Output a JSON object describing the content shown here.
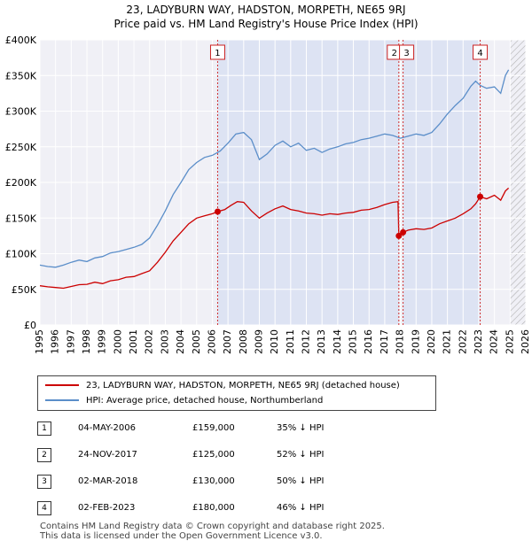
{
  "chart_data": {
    "type": "line",
    "title": "23, LADYBURN WAY, HADSTON, MORPETH, NE65 9RJ",
    "subtitle": "Price paid vs. HM Land Registry's House Price Index (HPI)",
    "xlabel": "",
    "ylabel": "",
    "xlim": [
      1995,
      2026
    ],
    "ylim": [
      0,
      400000
    ],
    "x_ticks": [
      "1995",
      "1996",
      "1997",
      "1998",
      "1999",
      "2000",
      "2001",
      "2002",
      "2003",
      "2004",
      "2005",
      "2006",
      "2007",
      "2008",
      "2009",
      "2010",
      "2011",
      "2012",
      "2013",
      "2014",
      "2015",
      "2016",
      "2017",
      "2018",
      "2019",
      "2020",
      "2021",
      "2022",
      "2023",
      "2024",
      "2025",
      "2026"
    ],
    "y_ticks": [
      {
        "value": 0,
        "label": "£0"
      },
      {
        "value": 50000,
        "label": "£50K"
      },
      {
        "value": 100000,
        "label": "£100K"
      },
      {
        "value": 150000,
        "label": "£150K"
      },
      {
        "value": 200000,
        "label": "£200K"
      },
      {
        "value": 250000,
        "label": "£250K"
      },
      {
        "value": 300000,
        "label": "£300K"
      },
      {
        "value": 350000,
        "label": "£350K"
      },
      {
        "value": 400000,
        "label": "£400K"
      }
    ],
    "grid": true,
    "shaded_ranges": [
      [
        2006.34,
        2017.9
      ],
      [
        2018.17,
        2023.09
      ]
    ],
    "future_hatch_from": 2025.0,
    "series": [
      {
        "name": "23, LADYBURN WAY, HADSTON, MORPETH, NE65 9RJ (detached house)",
        "color": "#cc0000",
        "points": [
          [
            1995.0,
            55000
          ],
          [
            1995.5,
            53500
          ],
          [
            1996.0,
            52500
          ],
          [
            1996.5,
            51500
          ],
          [
            1997.0,
            54000
          ],
          [
            1997.5,
            56500
          ],
          [
            1998.0,
            57000
          ],
          [
            1998.5,
            60000
          ],
          [
            1999.0,
            58000
          ],
          [
            1999.5,
            62000
          ],
          [
            2000.0,
            63500
          ],
          [
            2000.5,
            67000
          ],
          [
            2001.0,
            68000
          ],
          [
            2001.5,
            72000
          ],
          [
            2002.0,
            76000
          ],
          [
            2002.5,
            88000
          ],
          [
            2003.0,
            102000
          ],
          [
            2003.5,
            118000
          ],
          [
            2004.0,
            130000
          ],
          [
            2004.5,
            142000
          ],
          [
            2005.0,
            150000
          ],
          [
            2005.5,
            153000
          ],
          [
            2006.0,
            156000
          ],
          [
            2006.34,
            159000
          ],
          [
            2006.8,
            162000
          ],
          [
            2007.2,
            168000
          ],
          [
            2007.6,
            173000
          ],
          [
            2008.0,
            172000
          ],
          [
            2008.5,
            160000
          ],
          [
            2009.0,
            150000
          ],
          [
            2009.5,
            157000
          ],
          [
            2010.0,
            163000
          ],
          [
            2010.5,
            167000
          ],
          [
            2011.0,
            162000
          ],
          [
            2011.5,
            160000
          ],
          [
            2012.0,
            157000
          ],
          [
            2012.5,
            156000
          ],
          [
            2013.0,
            154000
          ],
          [
            2013.5,
            156000
          ],
          [
            2014.0,
            155000
          ],
          [
            2014.5,
            157000
          ],
          [
            2015.0,
            158000
          ],
          [
            2015.5,
            161000
          ],
          [
            2016.0,
            162000
          ],
          [
            2016.5,
            165000
          ],
          [
            2017.0,
            169000
          ],
          [
            2017.5,
            172000
          ],
          [
            2017.85,
            173000
          ],
          [
            2017.9,
            125000
          ],
          [
            2018.17,
            130000
          ],
          [
            2018.5,
            133000
          ],
          [
            2019.0,
            135000
          ],
          [
            2019.5,
            134000
          ],
          [
            2020.0,
            136000
          ],
          [
            2020.5,
            142000
          ],
          [
            2021.0,
            146000
          ],
          [
            2021.5,
            150000
          ],
          [
            2022.0,
            156000
          ],
          [
            2022.5,
            163000
          ],
          [
            2022.8,
            170000
          ],
          [
            2023.09,
            180000
          ],
          [
            2023.5,
            177000
          ],
          [
            2024.0,
            182000
          ],
          [
            2024.4,
            175000
          ],
          [
            2024.7,
            188000
          ],
          [
            2024.9,
            192000
          ]
        ]
      },
      {
        "name": "HPI: Average price, detached house, Northumberland",
        "color": "#5b8ec9",
        "points": [
          [
            1995.0,
            84000
          ],
          [
            1995.5,
            82000
          ],
          [
            1996.0,
            81000
          ],
          [
            1996.5,
            84000
          ],
          [
            1997.0,
            88000
          ],
          [
            1997.5,
            91000
          ],
          [
            1998.0,
            89000
          ],
          [
            1998.5,
            94000
          ],
          [
            1999.0,
            96000
          ],
          [
            1999.5,
            101000
          ],
          [
            2000.0,
            103000
          ],
          [
            2000.5,
            106000
          ],
          [
            2001.0,
            109000
          ],
          [
            2001.5,
            113000
          ],
          [
            2002.0,
            122000
          ],
          [
            2002.5,
            140000
          ],
          [
            2003.0,
            160000
          ],
          [
            2003.5,
            183000
          ],
          [
            2004.0,
            200000
          ],
          [
            2004.5,
            218000
          ],
          [
            2005.0,
            228000
          ],
          [
            2005.5,
            235000
          ],
          [
            2006.0,
            238000
          ],
          [
            2006.5,
            244000
          ],
          [
            2007.0,
            255000
          ],
          [
            2007.5,
            268000
          ],
          [
            2008.0,
            270000
          ],
          [
            2008.5,
            260000
          ],
          [
            2009.0,
            232000
          ],
          [
            2009.5,
            240000
          ],
          [
            2010.0,
            252000
          ],
          [
            2010.5,
            258000
          ],
          [
            2011.0,
            250000
          ],
          [
            2011.5,
            255000
          ],
          [
            2012.0,
            245000
          ],
          [
            2012.5,
            248000
          ],
          [
            2013.0,
            242000
          ],
          [
            2013.5,
            247000
          ],
          [
            2014.0,
            250000
          ],
          [
            2014.5,
            254000
          ],
          [
            2015.0,
            256000
          ],
          [
            2015.5,
            260000
          ],
          [
            2016.0,
            262000
          ],
          [
            2016.5,
            265000
          ],
          [
            2017.0,
            268000
          ],
          [
            2017.5,
            266000
          ],
          [
            2018.0,
            262000
          ],
          [
            2018.5,
            265000
          ],
          [
            2019.0,
            268000
          ],
          [
            2019.5,
            266000
          ],
          [
            2020.0,
            270000
          ],
          [
            2020.5,
            282000
          ],
          [
            2021.0,
            296000
          ],
          [
            2021.5,
            308000
          ],
          [
            2022.0,
            318000
          ],
          [
            2022.5,
            335000
          ],
          [
            2022.8,
            342000
          ],
          [
            2023.09,
            336000
          ],
          [
            2023.5,
            332000
          ],
          [
            2024.0,
            334000
          ],
          [
            2024.4,
            325000
          ],
          [
            2024.7,
            350000
          ],
          [
            2024.9,
            358000
          ]
        ]
      }
    ],
    "annotations": [
      {
        "label": "1",
        "x": 2006.34,
        "y": 159000
      },
      {
        "label": "2",
        "x": 2017.9,
        "y": 125000
      },
      {
        "label": "3",
        "x": 2018.17,
        "y": 130000
      },
      {
        "label": "4",
        "x": 2023.09,
        "y": 180000
      }
    ]
  },
  "legend": {
    "property_label": "23, LADYBURN WAY, HADSTON, MORPETH, NE65 9RJ (detached house)",
    "hpi_label": "HPI: Average price, detached house, Northumberland",
    "property_color": "#cc0000",
    "hpi_color": "#5b8ec9"
  },
  "sales": [
    {
      "num": "1",
      "date": "04-MAY-2006",
      "price": "£159,000",
      "delta": "35% ↓ HPI"
    },
    {
      "num": "2",
      "date": "24-NOV-2017",
      "price": "£125,000",
      "delta": "52% ↓ HPI"
    },
    {
      "num": "3",
      "date": "02-MAR-2018",
      "price": "£130,000",
      "delta": "50% ↓ HPI"
    },
    {
      "num": "4",
      "date": "02-FEB-2023",
      "price": "£180,000",
      "delta": "46% ↓ HPI"
    }
  ],
  "footer": {
    "line1": "Contains HM Land Registry data © Crown copyright and database right 2025.",
    "line2": "This data is licensed under the Open Government Licence v3.0."
  }
}
